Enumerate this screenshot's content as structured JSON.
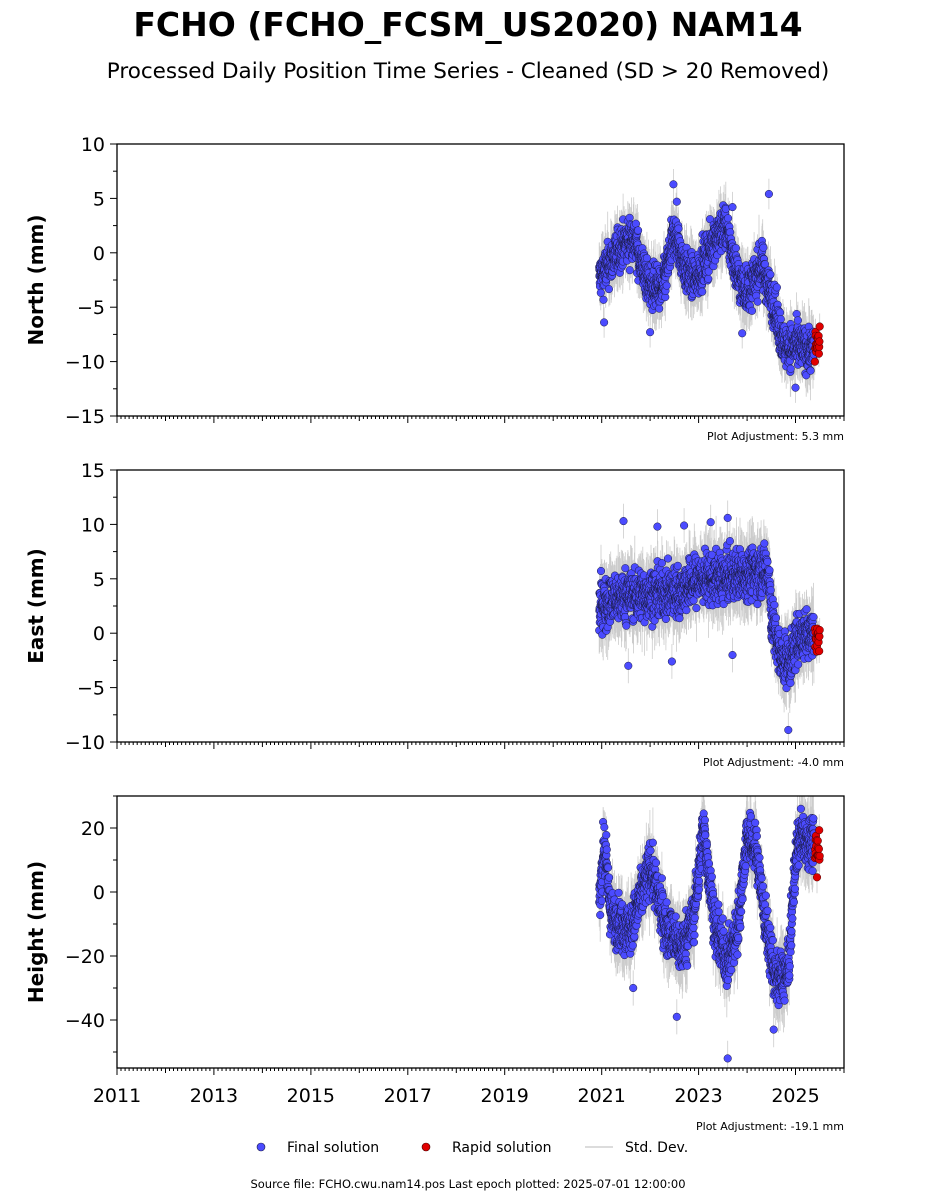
{
  "title": "FCHO (FCHO_FCSM_US2020) NAM14",
  "subtitle": "Processed Daily Position Time Series - Cleaned (SD > 20 Removed)",
  "footer": "Source file: FCHO.cwu.nam14.pos  Last epoch plotted: 2025-07-01 12:00:00",
  "legend": {
    "final": "Final solution",
    "rapid": "Rapid solution",
    "stddev": "Std. Dev."
  },
  "colors": {
    "final": "#4b4bff",
    "rapid": "#e00000",
    "stddev": "#9a9a9a",
    "edge": "#1a1a40"
  },
  "chart_data": [
    {
      "type": "scatter",
      "ylabel": "North (mm)",
      "ylim": [
        -15,
        10
      ],
      "yticks": [
        10,
        5,
        0,
        -5,
        -10,
        -15
      ],
      "xlim": [
        2011,
        2026
      ],
      "xticks": [
        "2011",
        "2013",
        "2015",
        "2017",
        "2019",
        "2021",
        "2023",
        "2025"
      ],
      "show_xtick_labels": false,
      "adjustment": "Plot Adjustment: 5.3 mm",
      "final": {
        "start": 2020.95,
        "end": 2025.38,
        "trend": [
          [
            2020.95,
            -2.3
          ],
          [
            2021.4,
            0.5
          ],
          [
            2021.65,
            1.5
          ],
          [
            2021.95,
            -2.8
          ],
          [
            2022.25,
            -3.5
          ],
          [
            2022.5,
            1.8
          ],
          [
            2022.75,
            -1.8
          ],
          [
            2022.95,
            -2.5
          ],
          [
            2023.3,
            1.0
          ],
          [
            2023.55,
            2.5
          ],
          [
            2023.85,
            -2.8
          ],
          [
            2024.05,
            -3.5
          ],
          [
            2024.3,
            -1.0
          ],
          [
            2024.55,
            -4.8
          ],
          [
            2024.75,
            -8.5
          ],
          [
            2025.05,
            -8.6
          ],
          [
            2025.38,
            -9.0
          ]
        ],
        "noise": 1.4,
        "outliers": [
          [
            2022.48,
            6.3
          ],
          [
            2022.55,
            4.7
          ],
          [
            2023.7,
            4.2
          ],
          [
            2024.45,
            5.4
          ],
          [
            2023.9,
            -7.4
          ],
          [
            2025.0,
            -12.4
          ],
          [
            2022.0,
            -7.3
          ],
          [
            2021.05,
            -6.4
          ]
        ]
      },
      "rapid": {
        "start": 2025.4,
        "end": 2025.5,
        "center": -8.4,
        "spread": 1.2
      }
    },
    {
      "type": "scatter",
      "ylabel": "East (mm)",
      "ylim": [
        -10,
        15
      ],
      "yticks": [
        15,
        10,
        5,
        0,
        -5,
        -10
      ],
      "xlim": [
        2011,
        2026
      ],
      "xticks": [
        "2011",
        "2013",
        "2015",
        "2017",
        "2019",
        "2021",
        "2023",
        "2025"
      ],
      "show_xtick_labels": false,
      "adjustment": "Plot Adjustment: -4.0 mm",
      "final": {
        "start": 2020.95,
        "end": 2025.38,
        "trend": [
          [
            2020.95,
            2.5
          ],
          [
            2021.5,
            3.5
          ],
          [
            2022.0,
            3.5
          ],
          [
            2022.6,
            3.8
          ],
          [
            2023.0,
            5.0
          ],
          [
            2023.5,
            5.0
          ],
          [
            2024.0,
            5.5
          ],
          [
            2024.45,
            5.8
          ],
          [
            2024.5,
            1.5
          ],
          [
            2024.7,
            -2.5
          ],
          [
            2024.9,
            -2.5
          ],
          [
            2025.05,
            -0.5
          ],
          [
            2025.38,
            0.2
          ]
        ],
        "noise": 1.6,
        "outliers": [
          [
            2021.45,
            10.3
          ],
          [
            2022.15,
            9.8
          ],
          [
            2022.7,
            9.9
          ],
          [
            2023.25,
            10.2
          ],
          [
            2023.6,
            10.6
          ],
          [
            2023.7,
            -2.0
          ],
          [
            2024.85,
            -8.9
          ],
          [
            2021.55,
            -3.0
          ],
          [
            2022.45,
            -2.6
          ]
        ]
      },
      "rapid": {
        "start": 2025.4,
        "end": 2025.5,
        "center": -0.4,
        "spread": 1.1
      }
    },
    {
      "type": "scatter",
      "ylabel": "Height (mm)",
      "ylim": [
        -55,
        30
      ],
      "yticks": [
        20,
        0,
        -20,
        -40
      ],
      "xlim": [
        2011,
        2026
      ],
      "xticks": [
        "2011",
        "2013",
        "2015",
        "2017",
        "2019",
        "2021",
        "2023",
        "2025"
      ],
      "show_xtick_labels": true,
      "adjustment": "Plot Adjustment: -19.1 mm",
      "final": {
        "start": 2020.95,
        "end": 2025.38,
        "trend": [
          [
            2020.95,
            -3
          ],
          [
            2021.05,
            15
          ],
          [
            2021.2,
            -8
          ],
          [
            2021.6,
            -12
          ],
          [
            2022.0,
            8
          ],
          [
            2022.3,
            -10
          ],
          [
            2022.65,
            -18
          ],
          [
            2022.9,
            -8
          ],
          [
            2023.1,
            20
          ],
          [
            2023.35,
            -12
          ],
          [
            2023.6,
            -22
          ],
          [
            2023.8,
            -12
          ],
          [
            2024.0,
            18
          ],
          [
            2024.2,
            12
          ],
          [
            2024.4,
            -12
          ],
          [
            2024.6,
            -28
          ],
          [
            2024.85,
            -25
          ],
          [
            2025.0,
            10
          ],
          [
            2025.1,
            18
          ],
          [
            2025.38,
            15
          ]
        ],
        "noise": 5.5,
        "outliers": [
          [
            2023.6,
            -52
          ],
          [
            2024.55,
            -43
          ],
          [
            2022.55,
            -39
          ],
          [
            2021.65,
            -30
          ]
        ]
      },
      "rapid": {
        "start": 2025.4,
        "end": 2025.5,
        "center": 12,
        "spread": 5
      }
    }
  ]
}
